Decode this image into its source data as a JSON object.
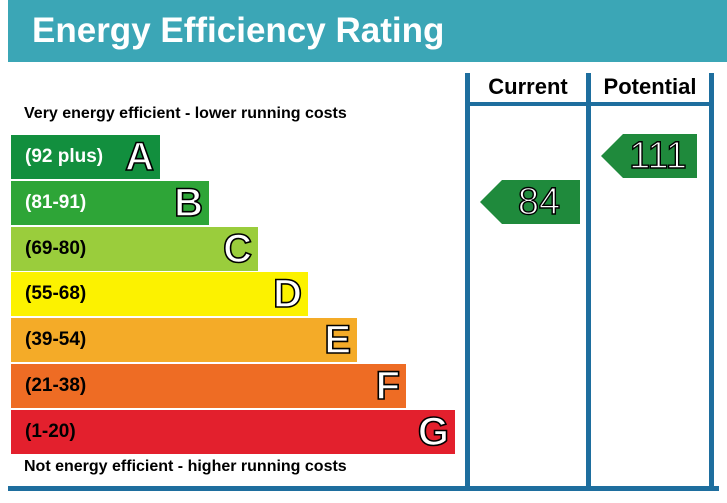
{
  "header": {
    "title": "Energy Efficiency Rating"
  },
  "notes": {
    "top": "Very energy efficient - lower running costs",
    "bottom": "Not energy efficient - higher running costs"
  },
  "columns": {
    "current": "Current",
    "potential": "Potential"
  },
  "colors": {
    "header": "#3ba6b6",
    "frame": "#1e6e9e",
    "arrow": "#1f8a3c"
  },
  "chart_data": {
    "type": "table",
    "bands": [
      {
        "letter": "A",
        "range": "(92 plus)",
        "color": "#128f3e",
        "text_color": "#ffffff"
      },
      {
        "letter": "B",
        "range": "(81-91)",
        "color": "#2ea537",
        "text_color": "#ffffff"
      },
      {
        "letter": "C",
        "range": "(69-80)",
        "color": "#9acd3c",
        "text_color": "#000000"
      },
      {
        "letter": "D",
        "range": "(55-68)",
        "color": "#fcf200",
        "text_color": "#000000"
      },
      {
        "letter": "E",
        "range": "(39-54)",
        "color": "#f4ab28",
        "text_color": "#000000"
      },
      {
        "letter": "F",
        "range": "(21-38)",
        "color": "#ee6c24",
        "text_color": "#000000"
      },
      {
        "letter": "G",
        "range": "(1-20)",
        "color": "#e3202d",
        "text_color": "#000000"
      }
    ],
    "current": {
      "value": "84",
      "band": "B"
    },
    "potential": {
      "value": "111",
      "band": "A"
    }
  }
}
